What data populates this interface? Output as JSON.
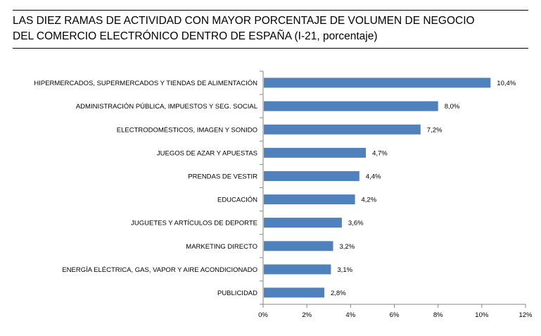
{
  "title": {
    "line1": "LAS DIEZ RAMAS DE ACTIVIDAD CON MAYOR PORCENTAJE DE VOLUMEN DE NEGOCIO",
    "line2": "DEL COMERCIO ELECTRÓNICO DENTRO DE ESPAÑA (I-21, porcentaje)"
  },
  "chart_data": {
    "type": "bar",
    "orientation": "horizontal",
    "categories": [
      "HIPERMERCADOS, SUPERMERCADOS Y TIENDAS DE ALIMENTACIÓN",
      "ADMINISTRACIÓN PÚBLICA, IMPUESTOS Y SEG. SOCIAL",
      "ELECTRODOMÉSTICOS,  IMAGEN Y SONIDO",
      "JUEGOS DE AZAR Y APUESTAS",
      "PRENDAS DE VESTIR",
      "EDUCACIÓN",
      "JUGUETES Y ARTÍCULOS DE DEPORTE",
      "MARKETING DIRECTO",
      "ENERGÍA ELÉCTRICA, GAS, VAPOR Y AIRE ACONDICIONADO",
      "PUBLICIDAD"
    ],
    "values": [
      10.4,
      8.0,
      7.2,
      4.7,
      4.4,
      4.2,
      3.6,
      3.2,
      3.1,
      2.8
    ],
    "value_labels": [
      "10,4%",
      "8,0%",
      "7,2%",
      "4,7%",
      "4,4%",
      "4,2%",
      "3,6%",
      "3,2%",
      "3,1%",
      "2,8%"
    ],
    "xlim": [
      0,
      12
    ],
    "xticks": [
      0,
      2,
      4,
      6,
      8,
      10,
      12
    ],
    "xtick_labels": [
      "0%",
      "2%",
      "4%",
      "6%",
      "8%",
      "10%",
      "12%"
    ],
    "bar_color": "#4f81bd",
    "axis_color": "#868686",
    "grid": false,
    "legend": "none"
  }
}
